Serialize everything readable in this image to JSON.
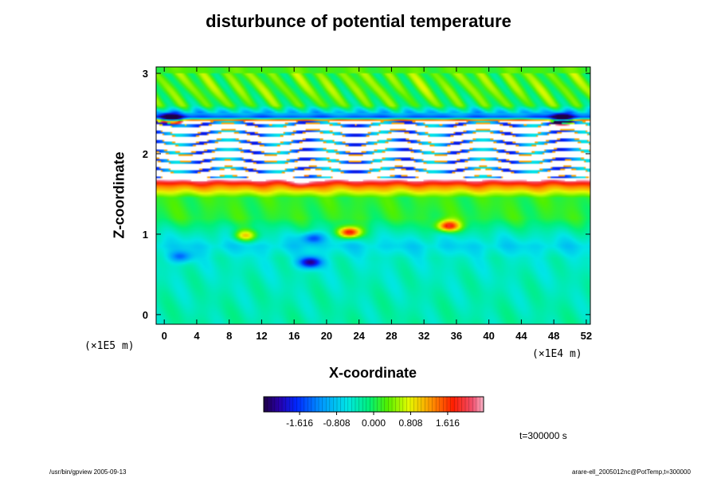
{
  "chart_data": {
    "type": "heatmap",
    "title": "disturbunce of potential temperature",
    "xlabel": "X-coordinate",
    "ylabel": "Z-coordinate",
    "x_unit": "(×1E4 m)",
    "y_unit": "(×1E5 m)",
    "xlim": [
      -1,
      52.5
    ],
    "ylim": [
      -0.12,
      3.08
    ],
    "x_ticks": [
      0,
      4,
      8,
      12,
      16,
      20,
      24,
      28,
      32,
      36,
      40,
      44,
      48,
      52
    ],
    "y_ticks": [
      0,
      1,
      2,
      3
    ],
    "colorbar": {
      "range": [
        -2.4,
        2.4
      ],
      "ticks": [
        -1.616,
        -0.808,
        0.0,
        0.808,
        1.616
      ],
      "tick_labels": [
        "-1.616",
        "-0.808",
        "0.000",
        "0.808",
        "1.616"
      ]
    },
    "profile": {
      "z": [
        -0.12,
        0.2,
        0.5,
        0.7,
        0.85,
        1.0,
        1.2,
        1.45,
        1.6,
        1.65,
        1.7,
        2.4,
        2.45,
        2.6,
        2.8,
        3.08
      ],
      "value": [
        -0.3,
        -0.35,
        -0.4,
        -0.45,
        -0.7,
        -0.4,
        0.1,
        0.15,
        1.4,
        2.0,
        3.0,
        3.0,
        -1.5,
        0.1,
        0.25,
        0.25
      ]
    },
    "features": [
      {
        "x": 18,
        "z": 0.65,
        "value": -2.2
      },
      {
        "x": 18.3,
        "z": 0.95,
        "value": -1.6
      },
      {
        "x": 22.8,
        "z": 1.02,
        "value": 1.9
      },
      {
        "x": 35,
        "z": 1.1,
        "value": 1.9
      },
      {
        "x": 17,
        "z": 1.65,
        "value": 2.6
      },
      {
        "x": 2,
        "z": 0.72,
        "value": -1.4
      },
      {
        "x": 10,
        "z": 0.98,
        "value": 0.9
      },
      {
        "x": 1,
        "z": 2.43,
        "value": -2.1
      },
      {
        "x": 49,
        "z": 2.43,
        "value": -2.1
      }
    ],
    "time_label": "t=300000 s"
  },
  "footer": {
    "left": "/usr/bin/gpview 2005-09-13",
    "right": "arare-ell_2005012nc@PotTemp,t=300000"
  }
}
